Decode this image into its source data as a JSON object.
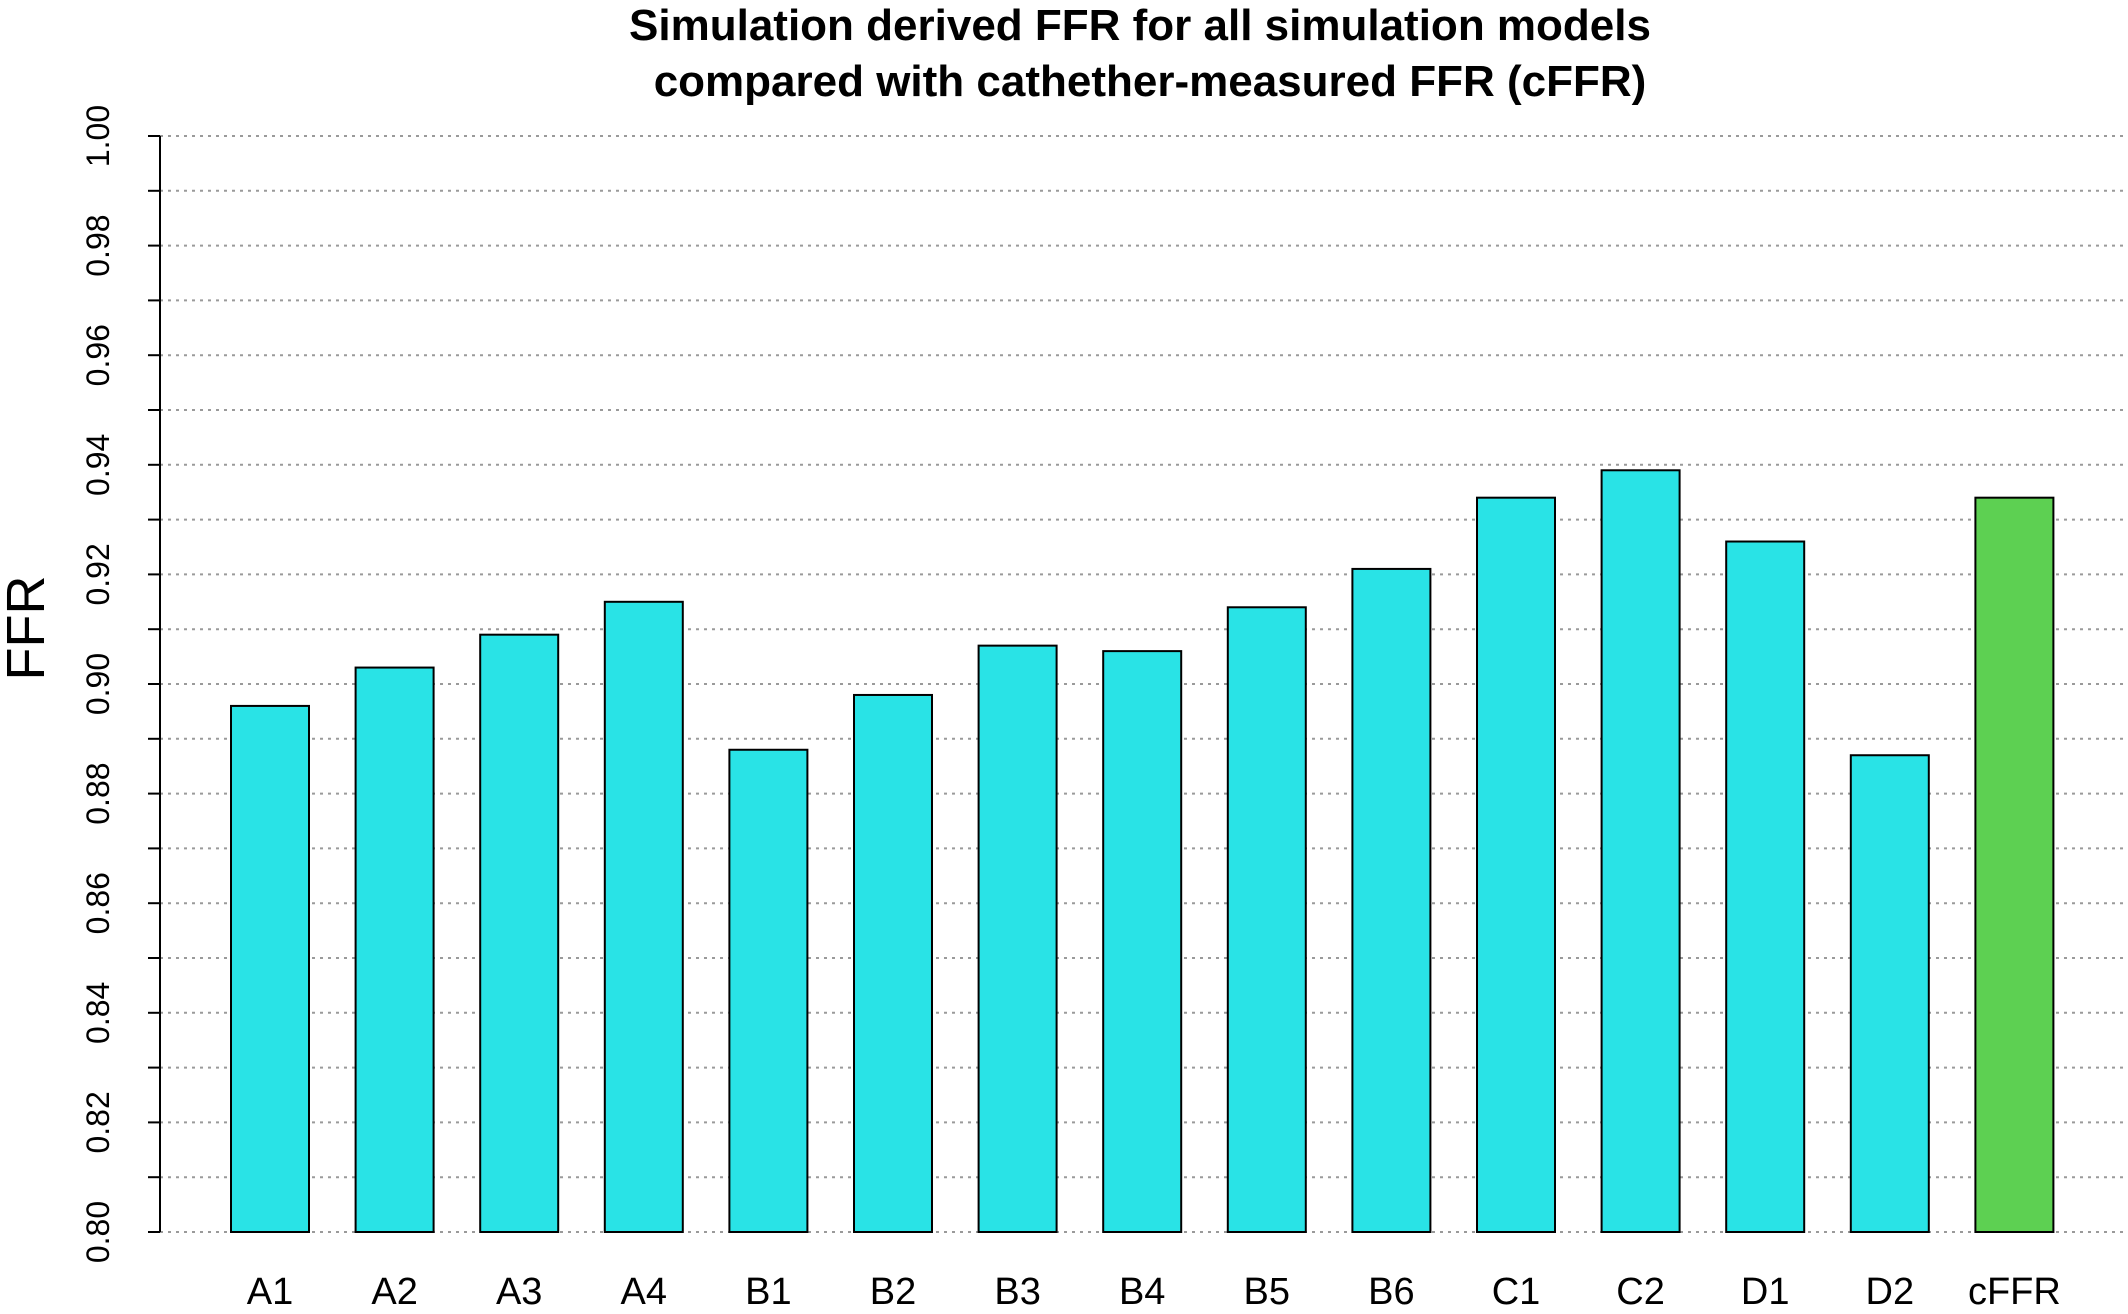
{
  "chart_data": {
    "type": "bar",
    "title": "Simulation derived FFR for all simulation models",
    "subtitle": "compared with cathether-measured FFR (cFFR)",
    "xlabel": "",
    "ylabel": "FFR",
    "ylim": [
      0.8,
      1.0
    ],
    "yticks": [
      "0.80",
      "0.82",
      "0.84",
      "0.86",
      "0.88",
      "0.90",
      "0.92",
      "0.94",
      "0.96",
      "0.98",
      "1.00"
    ],
    "grid": true,
    "categories": [
      "A1",
      "A2",
      "A3",
      "A4",
      "B1",
      "B2",
      "B3",
      "B4",
      "B5",
      "B6",
      "C1",
      "C2",
      "D1",
      "D2",
      "cFFR"
    ],
    "values": [
      0.896,
      0.903,
      0.909,
      0.915,
      0.888,
      0.898,
      0.907,
      0.906,
      0.914,
      0.921,
      0.934,
      0.939,
      0.926,
      0.887,
      0.934
    ],
    "colors": {
      "simulation": "#29E3E6",
      "reference": "#5DD052"
    }
  }
}
